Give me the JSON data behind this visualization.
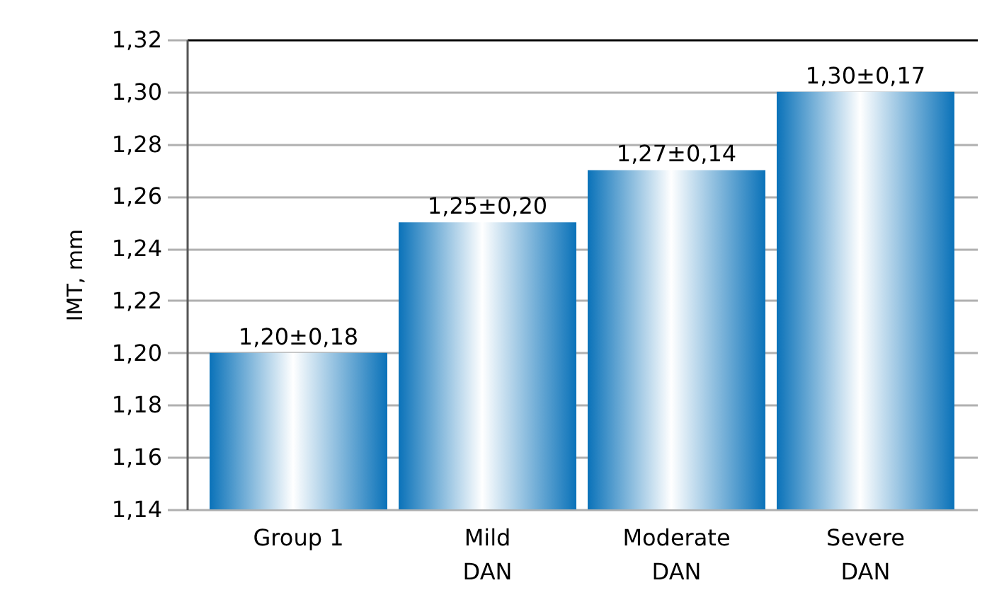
{
  "chart_data": {
    "type": "bar",
    "ylabel": "IMT, mm",
    "categories": [
      "Group 1",
      "Mild\nDAN",
      "Moderate\nDAN",
      "Severe\nDAN"
    ],
    "values": [
      1.2,
      1.25,
      1.27,
      1.3
    ],
    "color": "#0a72b9",
    "value_labels": [
      "1,20±0,18",
      "1,25±0,20",
      "1,27±0,14",
      "1,30±0,17"
    ],
    "ylim": [
      1.14,
      1.32
    ],
    "yticks": [
      {
        "value": 1.14,
        "label": "1,14"
      },
      {
        "value": 1.16,
        "label": "1,16"
      },
      {
        "value": 1.18,
        "label": "1,18"
      },
      {
        "value": 1.2,
        "label": "1,20"
      },
      {
        "value": 1.22,
        "label": "1,22"
      },
      {
        "value": 1.24,
        "label": "1,24"
      },
      {
        "value": 1.26,
        "label": "1,26"
      },
      {
        "value": 1.28,
        "label": "1,28"
      },
      {
        "value": 1.3,
        "label": "1,30"
      },
      {
        "value": 1.32,
        "label": "1,32"
      }
    ],
    "grid": true
  }
}
